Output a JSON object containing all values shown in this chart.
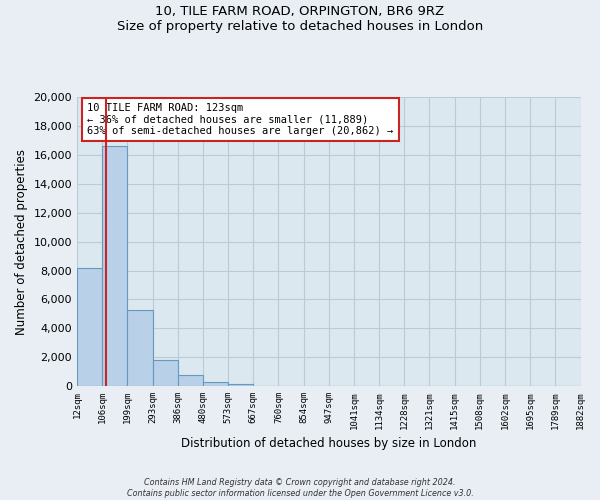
{
  "title_line1": "10, TILE FARM ROAD, ORPINGTON, BR6 9RZ",
  "title_line2": "Size of property relative to detached houses in London",
  "xlabel": "Distribution of detached houses by size in London",
  "ylabel": "Number of detached properties",
  "bin_labels": [
    "12sqm",
    "106sqm",
    "199sqm",
    "293sqm",
    "386sqm",
    "480sqm",
    "573sqm",
    "667sqm",
    "760sqm",
    "854sqm",
    "947sqm",
    "1041sqm",
    "1134sqm",
    "1228sqm",
    "1321sqm",
    "1415sqm",
    "1508sqm",
    "1602sqm",
    "1695sqm",
    "1789sqm",
    "1882sqm"
  ],
  "bar_heights": [
    8200,
    16600,
    5300,
    1800,
    750,
    300,
    175,
    0,
    0,
    0,
    0,
    0,
    0,
    0,
    0,
    0,
    0,
    0,
    0,
    0
  ],
  "bar_color": "#b8d0e8",
  "bar_edge_color": "#6699bb",
  "vline_x": 1.17,
  "vline_color": "#cc2222",
  "annotation_title": "10 TILE FARM ROAD: 123sqm",
  "annotation_line1": "← 36% of detached houses are smaller (11,889)",
  "annotation_line2": "63% of semi-detached houses are larger (20,862) →",
  "annotation_box_color": "#ffffff",
  "annotation_box_edge_color": "#cc2222",
  "ylim": [
    0,
    20000
  ],
  "yticks": [
    0,
    2000,
    4000,
    6000,
    8000,
    10000,
    12000,
    14000,
    16000,
    18000,
    20000
  ],
  "footer_line1": "Contains HM Land Registry data © Crown copyright and database right 2024.",
  "footer_line2": "Contains public sector information licensed under the Open Government Licence v3.0.",
  "bg_color": "#e8eef4",
  "plot_bg_color": "#dce8f0",
  "grid_color": "#b8ccd8"
}
